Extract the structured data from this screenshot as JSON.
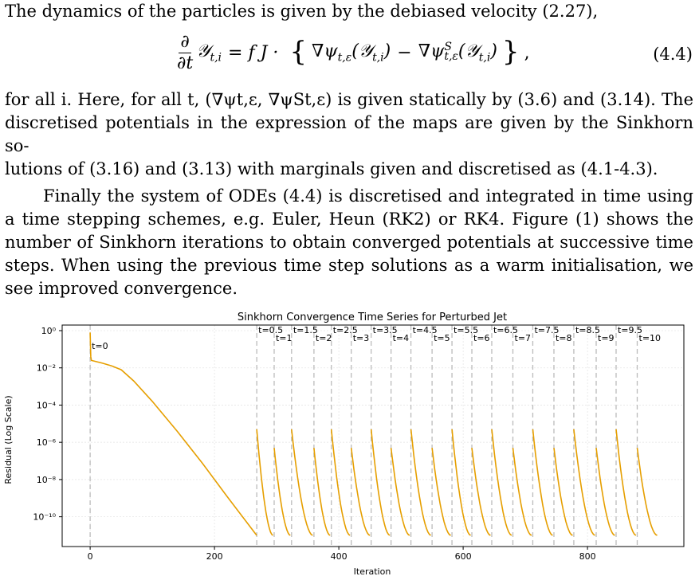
{
  "paragraph1": "The dynamics of the particles is given by the debiased velocity (2.27),",
  "equation": {
    "partial": "∂",
    "dt": "∂t",
    "lhs_y": "𝒴",
    "lhs_sub": "t,i",
    "eq_rhs_prefix": "= f J ·",
    "grad1": "∇ψ",
    "grad1_sub": "t,ε",
    "arg1": "(𝒴",
    "arg1_sub": "t,i",
    "arg1_close": ")",
    "minus": "−",
    "grad2": "∇ψ",
    "grad2_sup": "S",
    "grad2_sub": "t,ε",
    "arg2": "(𝒴",
    "arg2_sub": "t,i",
    "arg2_close": ")",
    "lbrace": "{",
    "rbrace": "}",
    "trail": ",",
    "number": "(4.4)"
  },
  "paragraph2": {
    "line1": "for all i.  Here, for all t, (∇ψt,ε, ∇ψSt,ε) is given statically by (3.6) and (3.14).  The",
    "line2": "discretised potentials in the expression of the maps are given by the Sinkhorn so-",
    "line3": "lutions of (3.16) and (3.13) with marginals given and discretised as (4.1-4.3)."
  },
  "paragraph3": {
    "line1": "Finally the system of ODEs (4.4) is discretised and integrated in time using",
    "line2": "a time stepping schemes, e.g.  Euler, Heun (RK2) or RK4.  Figure (1) shows the",
    "line3": "number of Sinkhorn iterations to obtain converged potentials at successive time",
    "line4": "steps.  When using the previous time step solutions as a warm initialisation, we",
    "line5": "see improved convergence."
  },
  "chart_data": {
    "type": "line",
    "title": "Sinkhorn Convergence Time Series for Perturbed Jet",
    "xlabel": "Iteration",
    "ylabel": "Residual (Log Scale)",
    "yscale": "log",
    "xlim": [
      -45,
      955
    ],
    "ylim_exp": [
      -11.6,
      0.3
    ],
    "xticks": [
      0,
      200,
      400,
      600,
      800
    ],
    "yticks": [
      {
        "exp": 0,
        "label": "10⁰"
      },
      {
        "exp": -2,
        "label": "10⁻²"
      },
      {
        "exp": -4,
        "label": "10⁻⁴"
      },
      {
        "exp": -6,
        "label": "10⁻⁶"
      },
      {
        "exp": -8,
        "label": "10⁻⁸"
      },
      {
        "exp": -10,
        "label": "10⁻¹⁰"
      }
    ],
    "grid": true,
    "line_color": "#e69f00",
    "vline_color": "#bbbbbb",
    "time_markers": [
      {
        "label": "t=0",
        "x": 0
      },
      {
        "label": "t=0.5",
        "x": 268
      },
      {
        "label": "t=1",
        "x": 296
      },
      {
        "label": "t=1.5",
        "x": 324
      },
      {
        "label": "t=2",
        "x": 360
      },
      {
        "label": "t=2.5",
        "x": 388
      },
      {
        "label": "t=3",
        "x": 420
      },
      {
        "label": "t=3.5",
        "x": 452
      },
      {
        "label": "t=4",
        "x": 484
      },
      {
        "label": "t=4.5",
        "x": 516
      },
      {
        "label": "t=5",
        "x": 550
      },
      {
        "label": "t=5.5",
        "x": 582
      },
      {
        "label": "t=6",
        "x": 614
      },
      {
        "label": "t=6.5",
        "x": 646
      },
      {
        "label": "t=7",
        "x": 680
      },
      {
        "label": "t=7.5",
        "x": 712
      },
      {
        "label": "t=8",
        "x": 746
      },
      {
        "label": "t=8.5",
        "x": 778
      },
      {
        "label": "t=9",
        "x": 814
      },
      {
        "label": "t=9.5",
        "x": 846
      },
      {
        "label": "t=10",
        "x": 880
      }
    ],
    "initial_segment": {
      "x": [
        0,
        1,
        2,
        20,
        35,
        50,
        70,
        100,
        140,
        180,
        220,
        268
      ],
      "log10_y": [
        -0.1,
        -1.4,
        -1.6,
        -1.75,
        -1.9,
        -2.1,
        -2.7,
        -3.8,
        -5.4,
        -7.1,
        -8.9,
        -11.0
      ]
    },
    "restart_segments": [
      {
        "x_start": 268,
        "x_end": 294,
        "log10_y_start": -5.3,
        "log10_y_end": -11.0
      },
      {
        "x_start": 296,
        "x_end": 322,
        "log10_y_start": -6.3,
        "log10_y_end": -11.0
      },
      {
        "x_start": 324,
        "x_end": 358,
        "log10_y_start": -5.3,
        "log10_y_end": -11.0
      },
      {
        "x_start": 360,
        "x_end": 386,
        "log10_y_start": -6.3,
        "log10_y_end": -11.0
      },
      {
        "x_start": 388,
        "x_end": 418,
        "log10_y_start": -5.3,
        "log10_y_end": -11.0
      },
      {
        "x_start": 420,
        "x_end": 450,
        "log10_y_start": -6.3,
        "log10_y_end": -11.0
      },
      {
        "x_start": 452,
        "x_end": 482,
        "log10_y_start": -5.3,
        "log10_y_end": -11.0
      },
      {
        "x_start": 484,
        "x_end": 514,
        "log10_y_start": -6.3,
        "log10_y_end": -11.0
      },
      {
        "x_start": 516,
        "x_end": 548,
        "log10_y_start": -5.3,
        "log10_y_end": -11.0
      },
      {
        "x_start": 550,
        "x_end": 580,
        "log10_y_start": -6.3,
        "log10_y_end": -11.0
      },
      {
        "x_start": 582,
        "x_end": 612,
        "log10_y_start": -5.3,
        "log10_y_end": -11.0
      },
      {
        "x_start": 614,
        "x_end": 644,
        "log10_y_start": -6.3,
        "log10_y_end": -11.0
      },
      {
        "x_start": 646,
        "x_end": 678,
        "log10_y_start": -5.3,
        "log10_y_end": -11.0
      },
      {
        "x_start": 680,
        "x_end": 710,
        "log10_y_start": -6.3,
        "log10_y_end": -11.0
      },
      {
        "x_start": 712,
        "x_end": 744,
        "log10_y_start": -5.3,
        "log10_y_end": -11.0
      },
      {
        "x_start": 746,
        "x_end": 776,
        "log10_y_start": -6.3,
        "log10_y_end": -11.0
      },
      {
        "x_start": 778,
        "x_end": 812,
        "log10_y_start": -5.3,
        "log10_y_end": -11.0
      },
      {
        "x_start": 814,
        "x_end": 844,
        "log10_y_start": -6.3,
        "log10_y_end": -11.0
      },
      {
        "x_start": 846,
        "x_end": 878,
        "log10_y_start": -5.3,
        "log10_y_end": -11.0
      },
      {
        "x_start": 880,
        "x_end": 912,
        "log10_y_start": -6.3,
        "log10_y_end": -11.0
      }
    ]
  }
}
